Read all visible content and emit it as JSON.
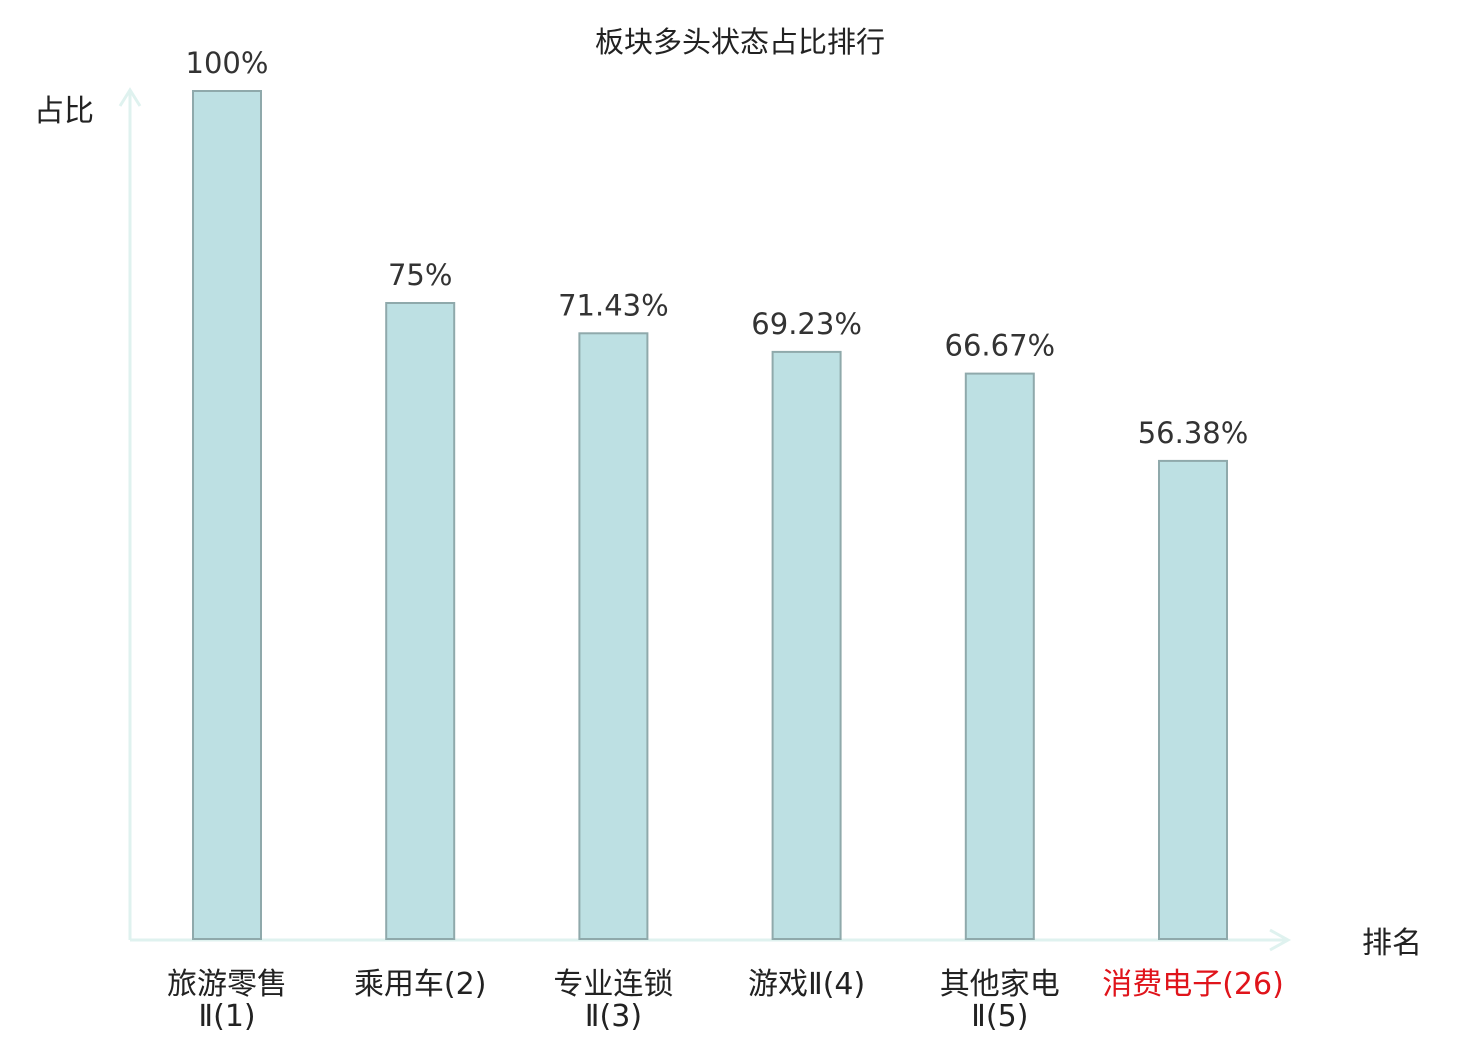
{
  "chart_data": {
    "type": "bar",
    "title": "板块多头状态占比排行",
    "ylabel": "占比",
    "xlabel": "排名",
    "ylim": [
      0,
      100
    ],
    "grid": false,
    "legend": "none",
    "categories": [
      {
        "line1": "旅游零售",
        "line2": "Ⅱ(1)",
        "highlight": false
      },
      {
        "line1": "乘用车(2)",
        "line2": "",
        "highlight": false
      },
      {
        "line1": "专业连锁",
        "line2": "Ⅱ(3)",
        "highlight": false
      },
      {
        "line1": "游戏Ⅱ(4)",
        "line2": "",
        "highlight": false
      },
      {
        "line1": "其他家电",
        "line2": "Ⅱ(5)",
        "highlight": false
      },
      {
        "line1": "消费电子(26)",
        "line2": "",
        "highlight": true
      }
    ],
    "values": [
      100,
      75,
      71.43,
      69.23,
      66.67,
      56.38
    ],
    "value_labels": [
      "100%",
      "75%",
      "71.43%",
      "69.23%",
      "66.67%",
      "56.38%"
    ],
    "colors": {
      "bar_fill": "#bde0e3",
      "bar_stroke": "#8fa9ab",
      "axis": "#dff2ef",
      "text": "#222222",
      "value_text": "#333333",
      "highlight_text": "#e0141b"
    }
  }
}
